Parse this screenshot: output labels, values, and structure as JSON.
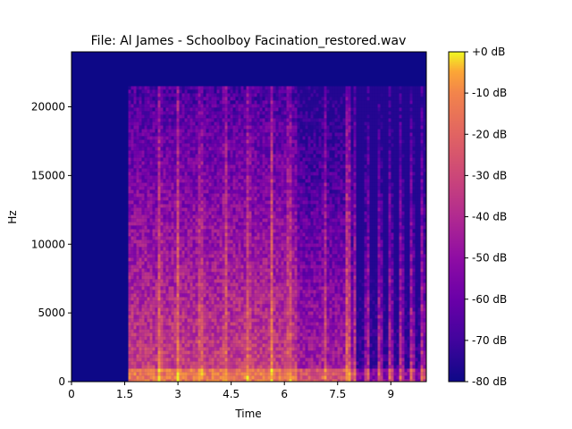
{
  "chart_data": {
    "type": "heatmap",
    "title": "File: Al James - Schoolboy Facination_restored.wav",
    "xlabel": "Time",
    "ylabel": "Hz",
    "xlim": [
      0,
      10.0
    ],
    "ylim": [
      0,
      24000
    ],
    "x_ticks": [
      {
        "value": 0,
        "label": "0"
      },
      {
        "value": 1.5,
        "label": "1.5"
      },
      {
        "value": 3,
        "label": "3"
      },
      {
        "value": 4.5,
        "label": "4.5"
      },
      {
        "value": 6,
        "label": "6"
      },
      {
        "value": 7.5,
        "label": "7.5"
      },
      {
        "value": 9,
        "label": "9"
      }
    ],
    "y_ticks": [
      {
        "value": 0,
        "label": "0"
      },
      {
        "value": 5000,
        "label": "5000"
      },
      {
        "value": 10000,
        "label": "10000"
      },
      {
        "value": 15000,
        "label": "15000"
      },
      {
        "value": 20000,
        "label": "20000"
      }
    ],
    "colorbar": {
      "colormap": "plasma",
      "range_db": [
        -80,
        0
      ],
      "ticks": [
        {
          "value": 0,
          "label": "+0 dB"
        },
        {
          "value": -10,
          "label": "-10 dB"
        },
        {
          "value": -20,
          "label": "-20 dB"
        },
        {
          "value": -30,
          "label": "-30 dB"
        },
        {
          "value": -40,
          "label": "-40 dB"
        },
        {
          "value": -50,
          "label": "-50 dB"
        },
        {
          "value": -60,
          "label": "-60 dB"
        },
        {
          "value": -70,
          "label": "-70 dB"
        },
        {
          "value": -80,
          "label": "-80 dB"
        }
      ]
    },
    "signal_onset_time": 1.6,
    "frequency_cutoff_hz": 21500,
    "colors": {
      "floor": "#0d0887",
      "low": "#6a00a8",
      "mid": "#cb4679",
      "high": "#f89441",
      "peak": "#f0f921"
    }
  }
}
